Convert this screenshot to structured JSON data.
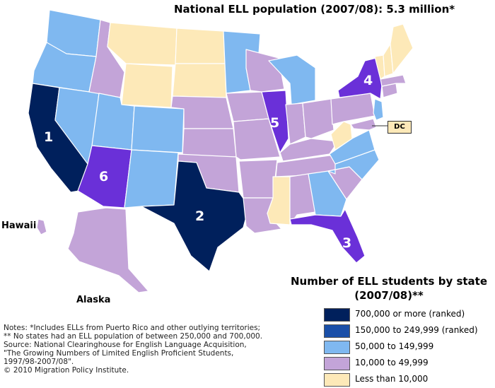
{
  "title": "National ELL population (2007/08): 5.3 million*",
  "colors": {
    "tier1": "#00205c",
    "tier2": "#1a4fa8",
    "tier3": "#7fb8f0",
    "tier4": "#c3a4d8",
    "tier5": "#fde9b8",
    "ranked_mid": "#6a30d8"
  },
  "legend": {
    "title_line1": "Number of ELL students by state",
    "title_line2": "(2007/08)**",
    "items": [
      {
        "label": "700,000 or more (ranked)",
        "color": "#00205c"
      },
      {
        "label": "150,000 to 249,999 (ranked)",
        "color": "#1a4fa8"
      },
      {
        "label": "50,000 to 149,999",
        "color": "#7fb8f0"
      },
      {
        "label": "10,000 to 49,999",
        "color": "#c3a4d8"
      },
      {
        "label": "Less than 10,000",
        "color": "#fde9b8"
      }
    ]
  },
  "ranks": {
    "california": "1",
    "texas": "2",
    "florida": "3",
    "new_york": "4",
    "illinois": "5",
    "arizona": "6"
  },
  "labels": {
    "hawaii": "Hawaii",
    "alaska": "Alaska",
    "dc": "DC"
  },
  "notes": [
    "Notes: *Includes ELLs from Puerto Rico and other outlying territories;",
    "** No states had an ELL population of between 250,000 and 700,000.",
    "Source: National Clearinghouse for English Language Acquisition,",
    "\"The Growing Numbers of Limited English Proficient Students,",
    "1997/98-2007/08\".",
    "© 2010 Migration Policy Institute."
  ]
}
